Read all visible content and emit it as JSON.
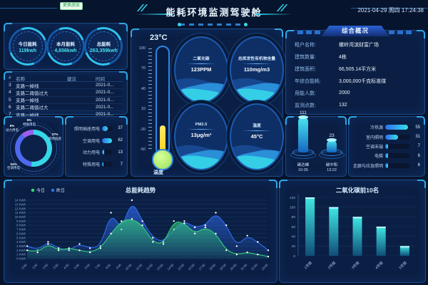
{
  "colors": {
    "bg": "#07142e",
    "panel": "#0c2148",
    "accent_cyan": "#35e0e8",
    "accent_blue": "#2f6df0",
    "green": "#35d07a",
    "yellow": "#ffd21f"
  },
  "header": {
    "badge": "更换皮肤",
    "title": "能耗环境监测驾驶舱",
    "datetime": "2021-04-29 周四 17:24:38"
  },
  "kpis": [
    {
      "label": "今日能耗",
      "value": "119kwh"
    },
    {
      "label": "本月能耗",
      "value": "4,656kwh"
    },
    {
      "label": "总能耗",
      "value": "263,359kwh"
    }
  ],
  "alarm_table": {
    "headers": [
      "#",
      "名称",
      "建议",
      "时间"
    ],
    "rows": [
      [
        "3",
        "支路一掉线",
        "",
        "2021-0..."
      ],
      [
        "4",
        "支路二阈值过大",
        "",
        "2021-0..."
      ],
      [
        "5",
        "支路一掉线",
        "",
        "2021-0..."
      ],
      [
        "6",
        "支路二阈值过大",
        "",
        "2021-0..."
      ],
      [
        "7",
        "支路一掉线",
        "",
        "2021-0..."
      ]
    ]
  },
  "donut": {
    "slices": [
      {
        "label": "特殊用电",
        "pct": 5,
        "color": "#ffd21f"
      },
      {
        "label": "空调用电",
        "pct": 52,
        "color": "#35d6e8"
      },
      {
        "label": "照明插座",
        "pct": 37,
        "color": "#4f68f0"
      },
      {
        "label": "动力用电",
        "pct": 6,
        "color": "#9a5ff0"
      }
    ],
    "labels": [
      {
        "pct": "5%",
        "name": "特殊用电",
        "pos": "top"
      },
      {
        "pct": "6%",
        "name": "动力用电",
        "pos": "topleft"
      },
      {
        "pct": "37%",
        "name": "照明插座",
        "pos": "right"
      },
      {
        "pct": "52%",
        "name": "空调用电",
        "pos": "bottomleft"
      }
    ]
  },
  "usage_bars": [
    {
      "label": "照明插座用电",
      "value": 37
    },
    {
      "label": "空调用电",
      "value": 62
    },
    {
      "label": "动力用电",
      "value": 13
    },
    {
      "label": "特殊用电",
      "value": 7
    }
  ],
  "thermometer": {
    "current": "23°C",
    "ticks": [
      "100",
      "70",
      "40",
      "10",
      "-20",
      "-50"
    ],
    "label": "温度"
  },
  "gauges": [
    {
      "label": "二氧化碳",
      "value": "123PPM"
    },
    {
      "label": "总挥发性有机物含量",
      "value": "110mg/m3"
    },
    {
      "label": "PM2.5",
      "value": "13μg/m³"
    },
    {
      "label": "温度",
      "value": "45°C"
    }
  ],
  "overview": {
    "title": "综合概况",
    "rows": [
      {
        "label": "租户名称:",
        "value": "螺岭湾滨财富广场"
      },
      {
        "label": "建筑数量:",
        "value": "4栋"
      },
      {
        "label": "建筑面积:",
        "value": "66,505.14平方米"
      },
      {
        "label": "年综合能耗:",
        "value": "3,000,000千克标准煤"
      },
      {
        "label": "用能人数:",
        "value": "2000"
      },
      {
        "label": "监测点数:",
        "value": "132"
      }
    ]
  },
  "carbon": [
    {
      "value": "111",
      "name": "碳达峰",
      "time": "10:35"
    },
    {
      "value": "23",
      "name": "碳中和",
      "time": "13:22"
    }
  ],
  "system_bars": [
    {
      "label": "冷热源",
      "value": 55
    },
    {
      "label": "室内照明",
      "value": 31
    },
    {
      "label": "空调末端",
      "value": 7
    },
    {
      "label": "电梯",
      "value": 6
    },
    {
      "label": "走廊与应急照明",
      "value": 6
    }
  ],
  "chart_data": [
    {
      "type": "area",
      "title": "总能耗趋势",
      "x": [
        "0:00",
        "1:00",
        "2:00",
        "3:00",
        "4:00",
        "5:00",
        "6:00",
        "7:00",
        "8:00",
        "9:00",
        "10:00",
        "11:00",
        "12:00",
        "13:00",
        "14:00",
        "15:00",
        "16:00",
        "17:00",
        "18:00",
        "19:00",
        "20:00",
        "21:00",
        "22:00",
        "23:00"
      ],
      "series": [
        {
          "name": "今日",
          "color": "#35d07a",
          "values": [
            2,
            1.5,
            3.5,
            2,
            2.5,
            2,
            1.5,
            2.5,
            6,
            9,
            9.5,
            8,
            4,
            3.5,
            9,
            8.5,
            6,
            7.5,
            6,
            2,
            1,
            1.5,
            1,
            0.5
          ]
        },
        {
          "name": "昨日",
          "color": "#2f6df0",
          "values": [
            3,
            2,
            4,
            2.5,
            2,
            3.5,
            2.5,
            3,
            11,
            7,
            14,
            9,
            5,
            4,
            7,
            9,
            7.5,
            8,
            11,
            8,
            3,
            5.5,
            4,
            2
          ]
        }
      ],
      "ylabel": "KWh",
      "ylim": [
        0,
        14
      ],
      "grid": true,
      "legend_position": "top-left"
    },
    {
      "type": "bar",
      "title": "二氧化碳前10名",
      "categories": [
        "1号楼",
        "2号楼",
        "3号楼",
        "4号楼",
        "5号楼"
      ],
      "values": [
        120,
        100,
        80,
        60,
        20
      ],
      "xlabel": "",
      "ylabel": "",
      "ylim": [
        0,
        120
      ],
      "ytick_step": 20,
      "grid": true
    }
  ]
}
